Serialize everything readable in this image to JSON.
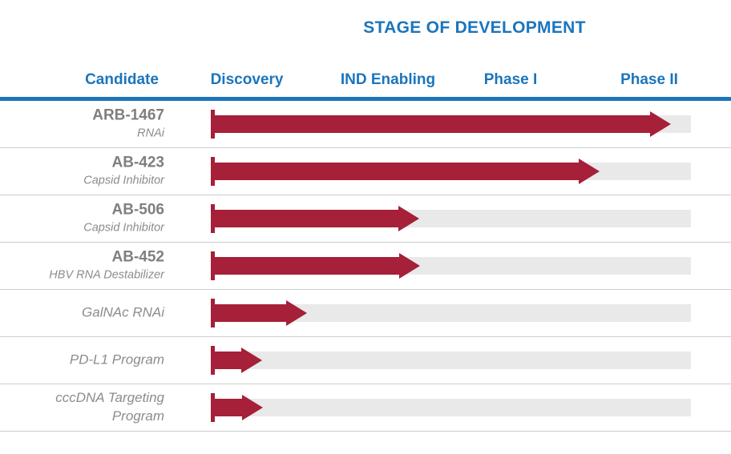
{
  "page": {
    "title": "STAGE OF DEVELOPMENT"
  },
  "header": {
    "columns": [
      "Candidate",
      "Discovery",
      "IND Enabling",
      "Phase I",
      "Phase II"
    ]
  },
  "colors": {
    "header_blue": "#1b75bc",
    "arrow_red": "#a52038",
    "track_gray": "#e9e9e9",
    "divider_gray": "#cccccc",
    "candidate_name_gray": "#7f7f7f",
    "candidate_subtitle_gray": "#8c8c8c"
  },
  "chart_data": {
    "type": "bar",
    "orientation": "horizontal",
    "title": "STAGE OF DEVELOPMENT",
    "stages": [
      "Discovery",
      "IND Enabling",
      "Phase I",
      "Phase II"
    ],
    "x_range_stage_units": [
      0,
      4
    ],
    "legend": "none",
    "rows": [
      {
        "candidate": "ARB-1467",
        "modality": "RNAi",
        "progress": 0.958,
        "progress_stage_units": 3.83,
        "stage_reached": "Phase II"
      },
      {
        "candidate": "AB-423",
        "modality": "Capsid Inhibitor",
        "progress": 0.809,
        "progress_stage_units": 3.24,
        "stage_reached": "Phase II"
      },
      {
        "candidate": "AB-506",
        "modality": "Capsid Inhibitor",
        "progress": 0.432,
        "progress_stage_units": 1.73,
        "stage_reached": "IND Enabling"
      },
      {
        "candidate": "AB-452",
        "modality": "HBV RNA Destabilizer",
        "progress": 0.434,
        "progress_stage_units": 1.74,
        "stage_reached": "IND Enabling"
      },
      {
        "candidate": "",
        "modality": "GalNAc RNAi",
        "progress": 0.198,
        "progress_stage_units": 0.79,
        "stage_reached": "Discovery"
      },
      {
        "candidate": "",
        "modality": "PD-L1 Program",
        "progress": 0.104,
        "progress_stage_units": 0.42,
        "stage_reached": "Discovery"
      },
      {
        "candidate": "",
        "modality": "cccDNA Targeting\nProgram",
        "progress": 0.106,
        "progress_stage_units": 0.42,
        "stage_reached": "Discovery"
      }
    ]
  }
}
